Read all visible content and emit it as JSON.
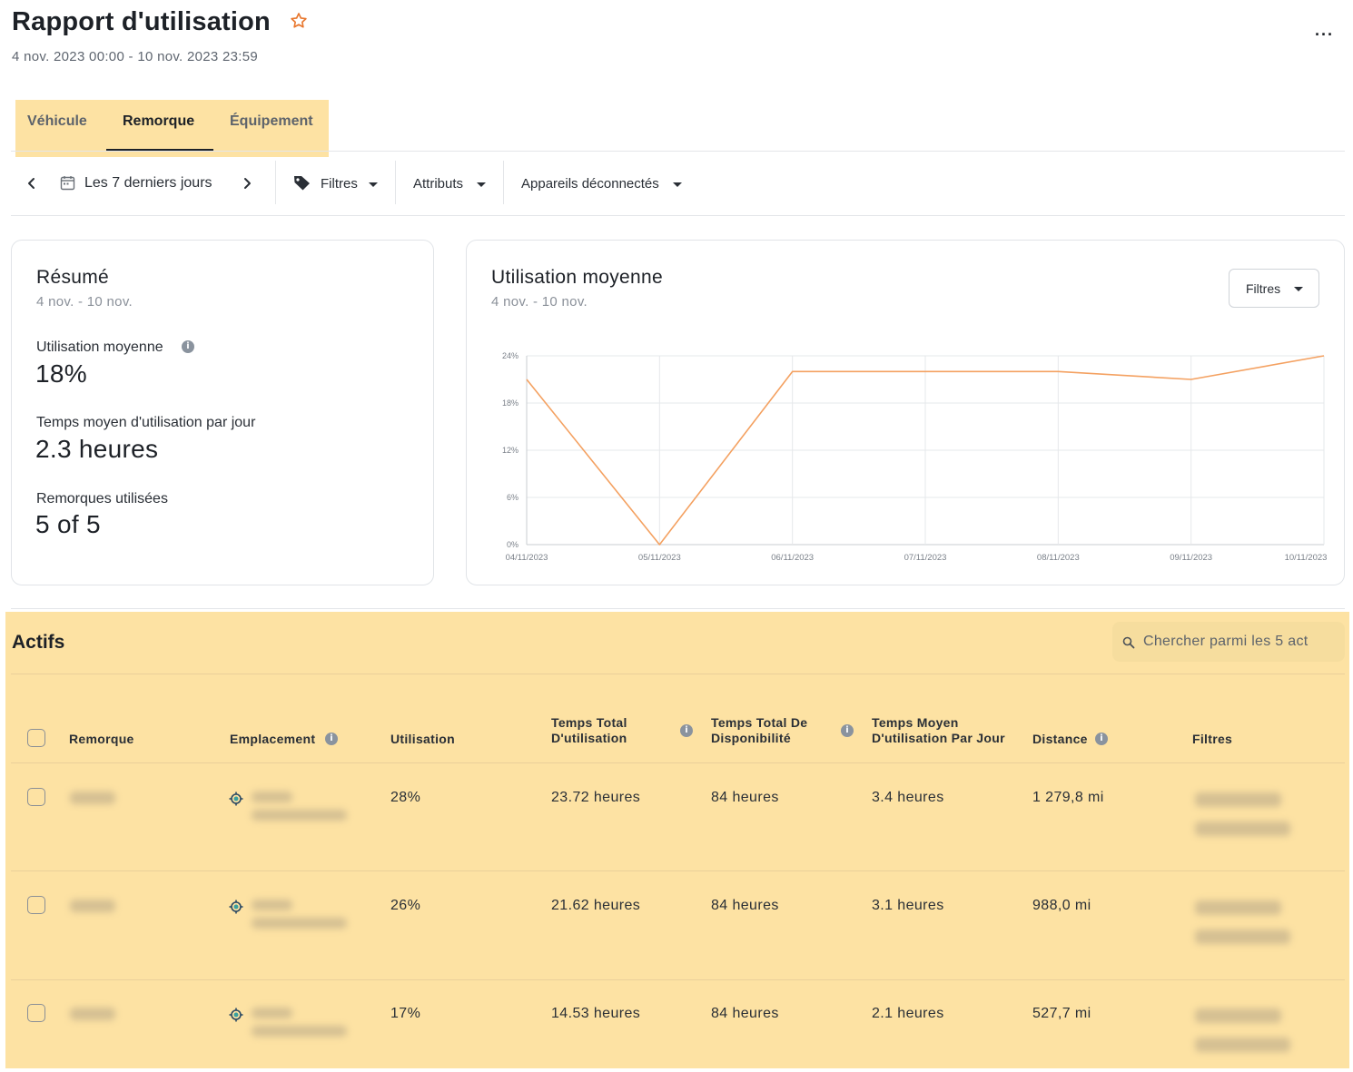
{
  "header": {
    "title": "Rapport d'utilisation",
    "date_range": "4 nov. 2023 00:00 - 10 nov. 2023 23:59",
    "more_label": "···"
  },
  "tabs": [
    {
      "label": "Véhicule",
      "active": false
    },
    {
      "label": "Remorque",
      "active": true
    },
    {
      "label": "Équipement",
      "active": false
    }
  ],
  "toolbar": {
    "period_label": "Les 7 derniers jours",
    "filters_label": "Filtres",
    "attributes_label": "Attributs",
    "disconnected_label": "Appareils déconnectés"
  },
  "summary": {
    "title": "Résumé",
    "subtitle": "4 nov. - 10 nov.",
    "metrics": [
      {
        "label": "Utilisation moyenne",
        "value": "18%",
        "info": true
      },
      {
        "label": "Temps moyen d'utilisation par jour",
        "value": "2.3 heures",
        "info": false
      },
      {
        "label": "Remorques utilisées",
        "value": "5 of 5",
        "info": false
      }
    ]
  },
  "chart_card": {
    "title": "Utilisation moyenne",
    "subtitle": "4 nov. - 10 nov.",
    "filter_label": "Filtres"
  },
  "chart_data": {
    "type": "line",
    "title": "Utilisation moyenne",
    "x": [
      "04/11/2023",
      "05/11/2023",
      "06/11/2023",
      "07/11/2023",
      "08/11/2023",
      "09/11/2023",
      "10/11/2023"
    ],
    "series": [
      {
        "values": [
          21,
          0,
          22,
          22,
          22,
          21,
          24
        ]
      }
    ],
    "yticks": [
      "0%",
      "6%",
      "12%",
      "18%",
      "24%"
    ],
    "ylim": [
      0,
      24
    ],
    "grid": true,
    "line_color": "#f4a161"
  },
  "actifs": {
    "title": "Actifs",
    "search_placeholder": "Chercher parmi les 5 act",
    "columns": [
      {
        "label": "Remorque",
        "info": false
      },
      {
        "label": "Emplacement",
        "info": true
      },
      {
        "label": "Utilisation",
        "info": false
      },
      {
        "label": "Temps Total\nD'utilisation",
        "info": true
      },
      {
        "label": "Temps Total De\nDisponibilité",
        "info": true
      },
      {
        "label": "Temps Moyen\nD'utilisation Par Jour",
        "info": false
      },
      {
        "label": "Distance",
        "info": true
      },
      {
        "label": "Filtres",
        "info": false
      }
    ],
    "rows": [
      {
        "utilisation": "28%",
        "total": "23.72 heures",
        "dispo": "84 heures",
        "moyen": "3.4 heures",
        "distance": "1 279,8 mi"
      },
      {
        "utilisation": "26%",
        "total": "21.62 heures",
        "dispo": "84 heures",
        "moyen": "3.1 heures",
        "distance": "988,0 mi"
      },
      {
        "utilisation": "17%",
        "total": "14.53 heures",
        "dispo": "84 heures",
        "moyen": "2.1 heures",
        "distance": "527,7 mi"
      }
    ]
  },
  "colors": {
    "highlight": "#fde2a3",
    "accent_star": "#e8772e",
    "chart_line": "#f4a161"
  }
}
